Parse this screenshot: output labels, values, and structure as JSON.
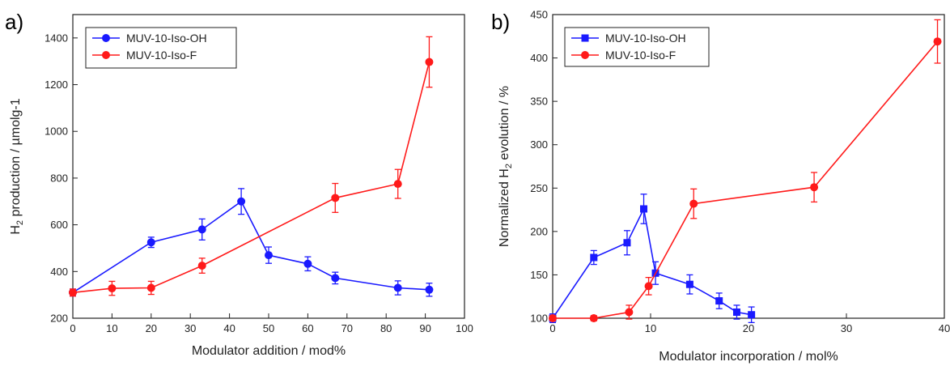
{
  "panels": [
    {
      "letter": "a)"
    },
    {
      "letter": "b)"
    }
  ],
  "chart_data": [
    {
      "type": "line",
      "panel": "a)",
      "xlabel": "Modulator addition / mod%",
      "ylabel_main": "H",
      "ylabel_sub": "2",
      "ylabel_rest": " production / µmolg-1",
      "xlim": [
        0,
        100
      ],
      "ylim": [
        200,
        1500
      ],
      "xticks": [
        0,
        10,
        20,
        30,
        40,
        50,
        60,
        70,
        80,
        90,
        100
      ],
      "yticks": [
        200,
        400,
        600,
        800,
        1000,
        1200,
        1400
      ],
      "grid": false,
      "legend_position": "top-left",
      "series": [
        {
          "name": "MUV-10-Iso-OH",
          "color": "#1a1aff",
          "marker": "circle",
          "x": [
            0,
            20,
            33,
            43,
            50,
            60,
            67,
            83,
            91
          ],
          "y": [
            310,
            525,
            580,
            700,
            470,
            433,
            372,
            330,
            322
          ],
          "err": [
            15,
            22,
            45,
            55,
            35,
            30,
            25,
            30,
            28
          ]
        },
        {
          "name": "MUV-10-Iso-F",
          "color": "#ff1a1a",
          "marker": "circle",
          "x": [
            0,
            10,
            20,
            33,
            67,
            83,
            91
          ],
          "y": [
            310,
            328,
            330,
            425,
            715,
            775,
            1297
          ],
          "err": [
            15,
            30,
            28,
            32,
            62,
            62,
            108
          ]
        }
      ]
    },
    {
      "type": "line",
      "panel": "b)",
      "xlabel": "Modulator incorporation / mol%",
      "ylabel_main": "Normalized H",
      "ylabel_sub": "2",
      "ylabel_rest": " evolution / %",
      "xlim": [
        0,
        40
      ],
      "ylim": [
        100,
        450
      ],
      "xticks": [
        0,
        10,
        20,
        30,
        40
      ],
      "yticks": [
        100,
        150,
        200,
        250,
        300,
        350,
        400,
        450
      ],
      "grid": false,
      "legend_position": "top-left",
      "series": [
        {
          "name": "MUV-10-Iso-OH",
          "color": "#1a1aff",
          "marker": "square",
          "x": [
            0,
            4.2,
            7.6,
            9.3,
            10.5,
            14,
            17,
            18.8,
            20.3
          ],
          "y": [
            100,
            170,
            187,
            226,
            152,
            139,
            120,
            107,
            104
          ],
          "err": [
            5,
            8,
            14,
            17,
            13,
            11,
            9,
            8,
            9
          ]
        },
        {
          "name": "MUV-10-Iso-F",
          "color": "#ff1a1a",
          "marker": "circle",
          "x": [
            0,
            4.2,
            7.8,
            9.8,
            14.4,
            26.7,
            39.3
          ],
          "y": [
            100,
            100,
            107,
            137,
            232,
            251,
            419
          ],
          "err": [
            3,
            3,
            8,
            10,
            17,
            17,
            25
          ]
        }
      ]
    }
  ]
}
